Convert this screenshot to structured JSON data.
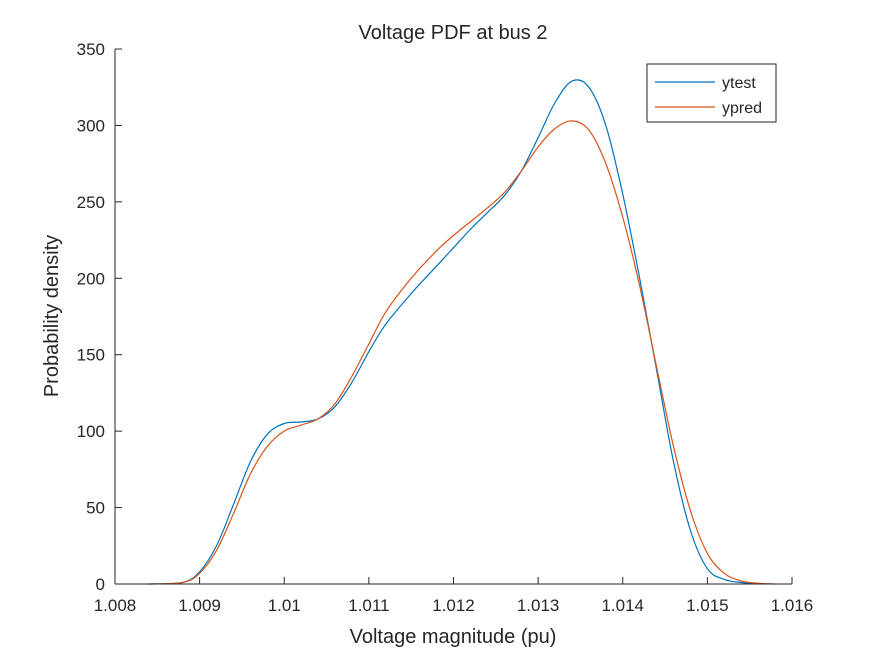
{
  "chart_data": {
    "type": "line",
    "title": "Voltage PDF at bus 2",
    "xlabel": "Voltage magnitude (pu)",
    "ylabel": "Probability density",
    "xlim": [
      1.008,
      1.016
    ],
    "ylim": [
      0,
      350
    ],
    "xticks": [
      1.008,
      1.009,
      1.01,
      1.011,
      1.012,
      1.013,
      1.014,
      1.015,
      1.016
    ],
    "xtick_labels": [
      "1.008",
      "1.009",
      "1.01",
      "1.011",
      "1.012",
      "1.013",
      "1.014",
      "1.015",
      "1.016"
    ],
    "yticks": [
      0,
      50,
      100,
      150,
      200,
      250,
      300,
      350
    ],
    "ytick_labels": [
      "0",
      "50",
      "100",
      "150",
      "200",
      "250",
      "300",
      "350"
    ],
    "grid": false,
    "legend_position": "top-right",
    "series": [
      {
        "name": "ytest",
        "color": "#0072BD",
        "x": [
          1.0084,
          1.0088,
          1.009,
          1.0092,
          1.0094,
          1.0096,
          1.0098,
          1.01,
          1.0102,
          1.0104,
          1.0106,
          1.0108,
          1.011,
          1.0112,
          1.0115,
          1.0118,
          1.012,
          1.0122,
          1.0124,
          1.0126,
          1.0128,
          1.013,
          1.0132,
          1.0134,
          1.0136,
          1.0138,
          1.014,
          1.0142,
          1.0144,
          1.0146,
          1.0148,
          1.015,
          1.0152,
          1.0154,
          1.0156
        ],
        "y": [
          0,
          1,
          8,
          25,
          52,
          80,
          98,
          105,
          106,
          108,
          116,
          132,
          152,
          170,
          190,
          208,
          220,
          232,
          243,
          254,
          270,
          292,
          315,
          329,
          325,
          300,
          255,
          200,
          140,
          80,
          35,
          10,
          3,
          1,
          0
        ]
      },
      {
        "name": "ypred",
        "color": "#D95319",
        "x": [
          1.0084,
          1.0088,
          1.009,
          1.0092,
          1.0094,
          1.0096,
          1.0098,
          1.01,
          1.0102,
          1.0104,
          1.0106,
          1.0108,
          1.011,
          1.0112,
          1.0115,
          1.0118,
          1.012,
          1.0122,
          1.0124,
          1.0126,
          1.0128,
          1.013,
          1.0132,
          1.0134,
          1.0136,
          1.0138,
          1.014,
          1.0142,
          1.0144,
          1.0146,
          1.0148,
          1.015,
          1.0152,
          1.0154,
          1.0156,
          1.0158
        ],
        "y": [
          0,
          1,
          7,
          22,
          46,
          72,
          90,
          100,
          104,
          108,
          118,
          136,
          157,
          178,
          200,
          218,
          228,
          237,
          246,
          256,
          270,
          286,
          298,
          303,
          297,
          275,
          240,
          195,
          142,
          90,
          48,
          20,
          7,
          2,
          0.5,
          0
        ]
      }
    ]
  }
}
